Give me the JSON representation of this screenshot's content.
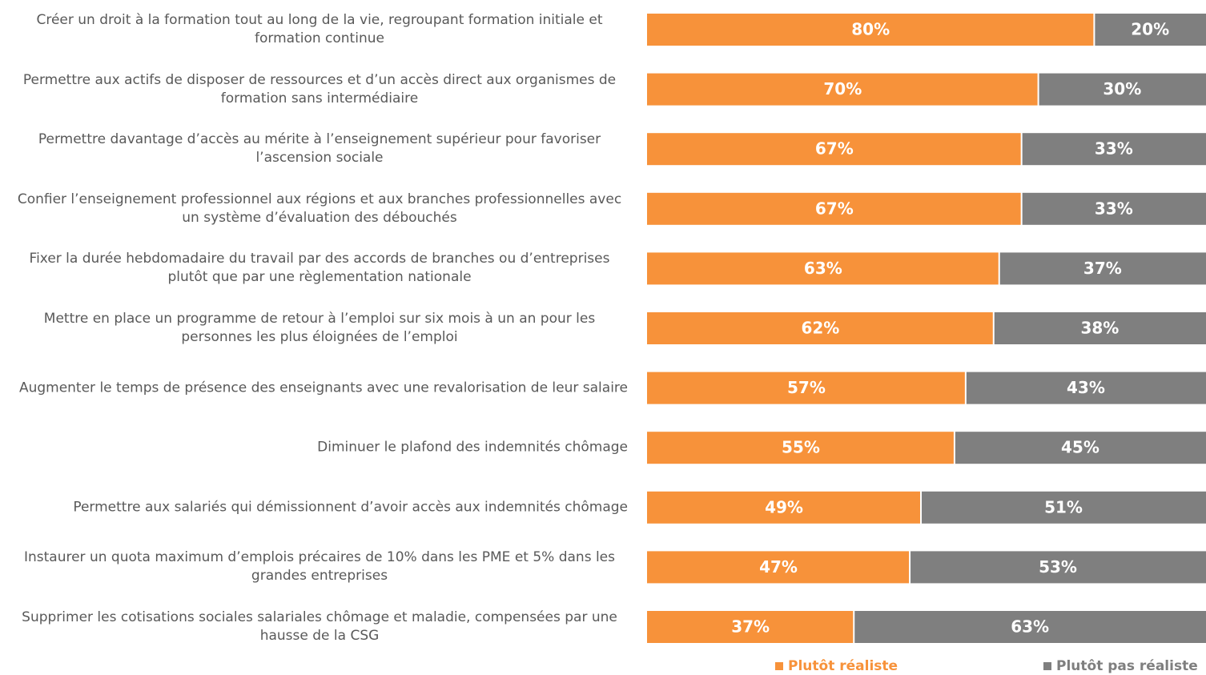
{
  "chart_data": {
    "type": "stacked-bar-horizontal",
    "categories": [
      "Créer un droit à la formation tout au long de la vie, regroupant formation initiale et formation continue",
      "Permettre aux actifs de disposer de ressources et d’un accès direct aux organismes de formation sans intermédiaire",
      "Permettre davantage d’accès au mérite à l’enseignement supérieur pour favoriser l’ascension sociale",
      "Confier l’enseignement professionnel aux régions et aux branches professionnelles avec un système d’évaluation des débouchés",
      "Fixer la durée hebdomadaire du travail par des accords de branches ou d’entreprises plutôt que par une règlementation nationale",
      "Mettre en place un programme de retour à l’emploi sur six mois à un an pour les personnes les plus éloignées de l’emploi",
      "Augmenter le temps de présence des enseignants avec une revalorisation de leur salaire",
      "Diminuer le plafond des indemnités chômage",
      "Permettre aux salariés qui démissionnent d’avoir accès aux indemnités chômage",
      "Instaurer un quota maximum d’emplois précaires de 10% dans les PME et 5% dans les grandes entreprises",
      "Supprimer les cotisations sociales salariales chômage et maladie, compensées par une hausse de la CSG"
    ],
    "series": [
      {
        "name": "Plutôt réaliste",
        "color": "#f7923a",
        "values": [
          80,
          70,
          67,
          67,
          63,
          62,
          57,
          55,
          49,
          47,
          37
        ],
        "value_labels": [
          "80%",
          "70%",
          "67%",
          "67%",
          "63%",
          "62%",
          "57%",
          "55%",
          "49%",
          "47%",
          "37%"
        ]
      },
      {
        "name": "Plutôt pas réaliste",
        "color": "#7f7f7f",
        "values": [
          20,
          30,
          33,
          33,
          37,
          38,
          43,
          45,
          51,
          53,
          63
        ],
        "value_labels": [
          "20%",
          "30%",
          "33%",
          "33%",
          "37%",
          "38%",
          "43%",
          "45%",
          "51%",
          "53%",
          "63%"
        ]
      }
    ],
    "xlim": [
      0,
      100
    ]
  }
}
